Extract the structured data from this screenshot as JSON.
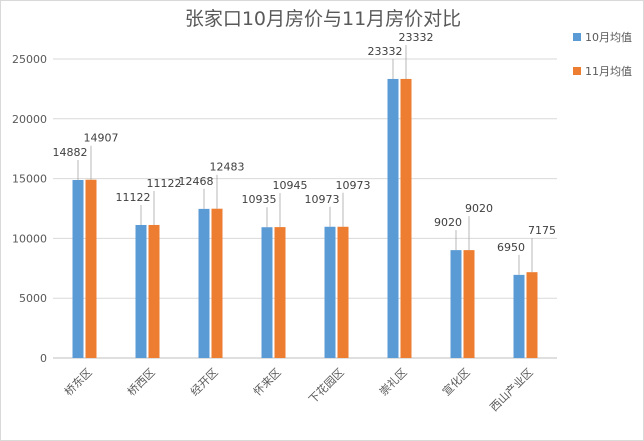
{
  "chart_data": {
    "type": "bar",
    "title": "张家口10月房价与11月房价对比",
    "categories": [
      "桥东区",
      "桥西区",
      "经开区",
      "怀来区",
      "下花园区",
      "崇礼区",
      "宣化区",
      "西山产业区"
    ],
    "series": [
      {
        "name": "10月均值",
        "color": "#5b9bd5",
        "values": [
          14882,
          11122,
          12468,
          10935,
          10973,
          23332,
          9020,
          6950
        ]
      },
      {
        "name": "11月均值",
        "color": "#ed7d31",
        "values": [
          14907,
          11122,
          12483,
          10945,
          10973,
          23332,
          9020,
          7175
        ]
      }
    ],
    "ylim": [
      0,
      25000
    ],
    "yticks": [
      0,
      5000,
      10000,
      15000,
      20000,
      25000
    ],
    "grid": true,
    "legend": "right",
    "xlabel": "",
    "ylabel": ""
  }
}
